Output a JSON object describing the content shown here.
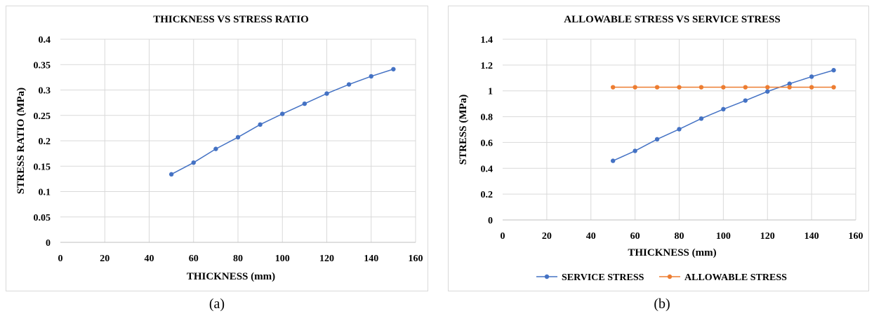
{
  "captions": {
    "a": "(a)",
    "b": "(b)"
  },
  "chart_data": [
    {
      "type": "line",
      "title": "THICKNESS VS STRESS RATIO",
      "xlabel": "THICKNESS (mm)",
      "ylabel": "STRESS RATIO (MPa)",
      "xlim": [
        0,
        160
      ],
      "ylim": [
        0,
        0.4
      ],
      "xticks": [
        "0",
        "20",
        "40",
        "60",
        "80",
        "100",
        "120",
        "140",
        "160"
      ],
      "yticks": [
        "0",
        "0.05",
        "0.1",
        "0.15",
        "0.2",
        "0.25",
        "0.3",
        "0.35",
        "0.4"
      ],
      "grid": true,
      "legend": "none",
      "x": [
        50,
        60,
        70,
        80,
        90,
        100,
        110,
        120,
        130,
        140,
        150
      ],
      "series": [
        {
          "name": "",
          "color": "#4472c4",
          "values": [
            0.134,
            0.157,
            0.184,
            0.207,
            0.232,
            0.253,
            0.273,
            0.293,
            0.311,
            0.327,
            0.341
          ]
        }
      ]
    },
    {
      "type": "line",
      "title": "ALLOWABLE  STRESS VS SERVICE STRESS",
      "xlabel": "THICKNESS (mm)",
      "ylabel": "STRESS (MPa)",
      "xlim": [
        0,
        160
      ],
      "ylim": [
        0,
        1.4
      ],
      "xticks": [
        "0",
        "20",
        "40",
        "60",
        "80",
        "100",
        "120",
        "140",
        "160"
      ],
      "yticks": [
        "0",
        "0.2",
        "0.4",
        "0.6",
        "0.8",
        "1",
        "1.2",
        "1.4"
      ],
      "grid": true,
      "legend": "bottom",
      "x": [
        50,
        60,
        70,
        80,
        90,
        100,
        110,
        120,
        130,
        140,
        150
      ],
      "series": [
        {
          "name": "SERVICE STRESS",
          "color": "#4472c4",
          "values": [
            0.458,
            0.535,
            0.625,
            0.703,
            0.785,
            0.858,
            0.925,
            0.995,
            1.055,
            1.11,
            1.16
          ]
        },
        {
          "name": "ALLOWABLE STRESS",
          "color": "#ed7d31",
          "values": [
            1.028,
            1.028,
            1.028,
            1.028,
            1.028,
            1.028,
            1.028,
            1.028,
            1.028,
            1.028,
            1.028
          ]
        }
      ]
    }
  ]
}
